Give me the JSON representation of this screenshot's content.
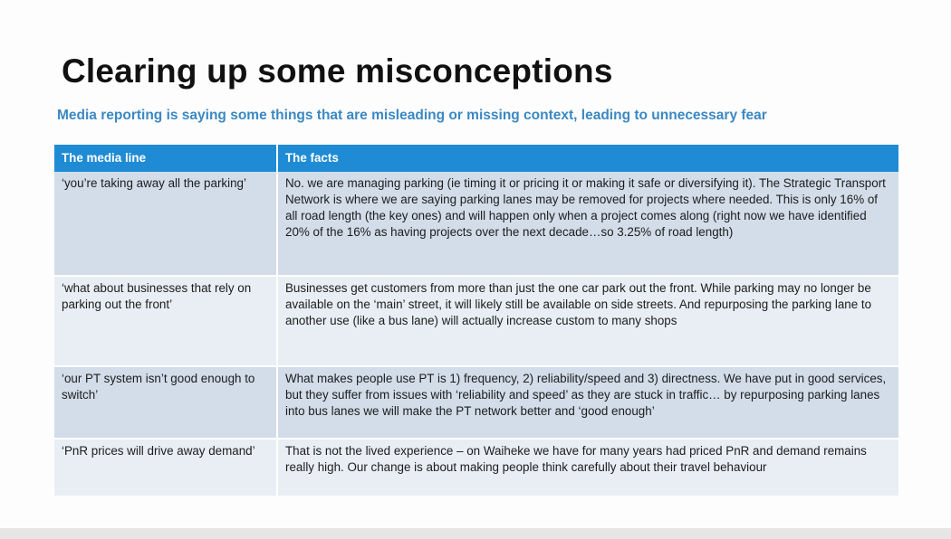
{
  "slide": {
    "title": "Clearing up some misconceptions",
    "subtitle": "Media reporting is saying some things that are misleading or missing context, leading to unnecessary fear"
  },
  "table": {
    "headers": [
      "The media line",
      "The facts"
    ],
    "rows": [
      {
        "media_line": "‘you’re taking away all the parking’",
        "facts": "No. we are managing parking (ie timing it or pricing it or making it safe or diversifying it). The Strategic Transport Network is where we are saying parking lanes may be removed for projects where needed. This is only 16% of all road length (the key ones) and will happen only when a project comes along (right now we have identified 20% of the 16% as having projects over the next decade…so 3.25% of road length)"
      },
      {
        "media_line": "‘what about businesses that rely on parking out the front’",
        "facts": "Businesses get customers from more than just the one car park out the front. While parking may no longer be available on the ‘main’ street, it will likely still be available on side streets. And repurposing the parking lane to another use (like a bus lane) will actually increase custom to many shops"
      },
      {
        "media_line": "‘our PT system isn’t good enough to switch’",
        "facts": "What makes people use PT is 1) frequency, 2) reliability/speed and 3) directness. We have put in good services, but they suffer from issues with ‘reliability and speed’ as they are stuck in traffic… by repurposing parking lanes into bus lanes we will make the PT network better and ‘good enough’"
      },
      {
        "media_line": "‘PnR prices will drive away demand’",
        "facts": "That is not the lived experience – on Waiheke we have for many years had priced PnR and demand remains really high. Our change is about making people think carefully about their travel behaviour"
      }
    ]
  }
}
